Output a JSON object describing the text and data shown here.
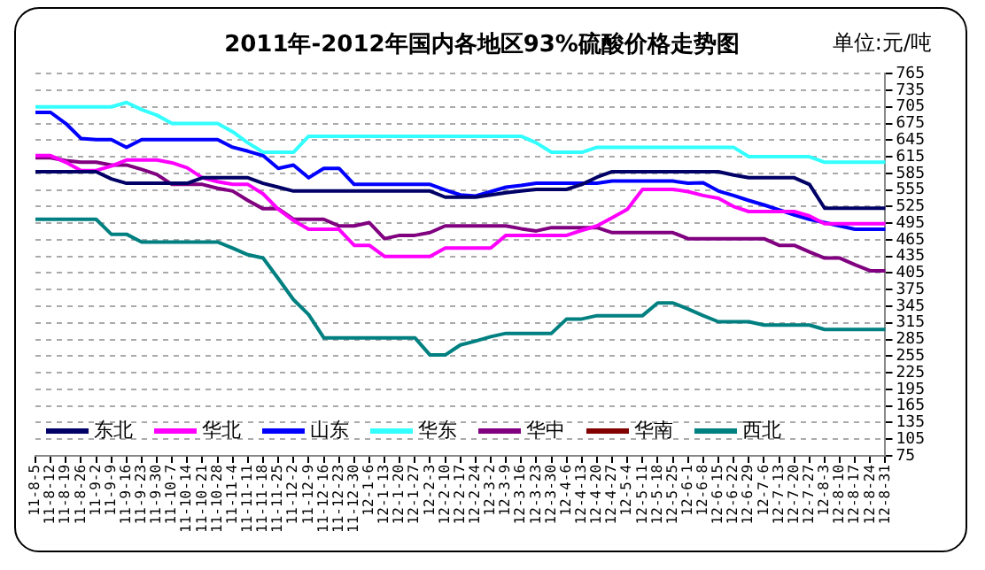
{
  "chart_data": {
    "type": "line",
    "title": "2011年-2012年国内各地区93%硫酸价格走势图",
    "annotations": [
      "单位:元/吨"
    ],
    "categories": [
      "11-8-5",
      "11-8-12",
      "11-8-19",
      "11-8-26",
      "11-9-2",
      "11-9-9",
      "11-9-16",
      "11-9-23",
      "11-9-30",
      "11-10-7",
      "11-10-14",
      "11-10-21",
      "11-10-28",
      "11-11-4",
      "11-11-11",
      "11-11-18",
      "11-11-25",
      "11-12-2",
      "11-12-9",
      "11-12-16",
      "11-12-23",
      "11-12-30",
      "12-1-6",
      "12-1-13",
      "12-1-20",
      "12-1-27",
      "12-2-3",
      "12-2-10",
      "12-2-17",
      "12-2-24",
      "12-3-2",
      "12-3-9",
      "12-3-16",
      "12-3-23",
      "12-3-30",
      "12-4-6",
      "12-4-13",
      "12-4-20",
      "12-4-27",
      "12-5-4",
      "12-5-11",
      "12-5-18",
      "12-5-25",
      "12-6-1",
      "12-6-8",
      "12-6-15",
      "12-6-22",
      "12-6-29",
      "12-7-6",
      "12-7-13",
      "12-7-20",
      "12-7-27",
      "12-8-3",
      "12-8-10",
      "12-8-17",
      "12-8-24",
      "12-8-31"
    ],
    "series": [
      {
        "name": "东北",
        "color": "#000066",
        "values": [
          588,
          588,
          588,
          588,
          588,
          575,
          567,
          567,
          567,
          567,
          567,
          577,
          577,
          577,
          577,
          567,
          560,
          553,
          553,
          553,
          553,
          553,
          553,
          553,
          553,
          553,
          553,
          542,
          542,
          542,
          546,
          550,
          553,
          556,
          556,
          556,
          565,
          578,
          588,
          588,
          588,
          588,
          588,
          588,
          588,
          588,
          582,
          577,
          577,
          577,
          577,
          565,
          522,
          522,
          522,
          522,
          522
        ]
      },
      {
        "name": "华北",
        "color": "#ff00ff",
        "values": [
          617,
          617,
          605,
          590,
          590,
          598,
          609,
          609,
          609,
          604,
          595,
          577,
          570,
          565,
          565,
          548,
          520,
          500,
          484,
          484,
          484,
          455,
          455,
          435,
          435,
          435,
          435,
          450,
          450,
          450,
          450,
          473,
          473,
          473,
          473,
          473,
          482,
          490,
          505,
          520,
          556,
          556,
          556,
          552,
          545,
          540,
          525,
          516,
          516,
          516,
          516,
          508,
          494,
          494,
          494,
          494,
          494
        ]
      },
      {
        "name": "山东",
        "color": "#0000ff",
        "values": [
          695,
          695,
          675,
          648,
          646,
          646,
          632,
          646,
          646,
          646,
          646,
          646,
          646,
          632,
          625,
          617,
          594,
          600,
          577,
          594,
          594,
          565,
          565,
          565,
          565,
          565,
          565,
          555,
          546,
          544,
          552,
          560,
          563,
          567,
          567,
          567,
          567,
          567,
          571,
          571,
          571,
          571,
          571,
          567,
          568,
          553,
          545,
          536,
          528,
          519,
          510,
          502,
          496,
          490,
          484,
          484,
          484
        ]
      },
      {
        "name": "华东",
        "color": "#33ffff",
        "values": [
          705,
          705,
          705,
          705,
          705,
          705,
          713,
          700,
          690,
          675,
          675,
          675,
          675,
          660,
          640,
          623,
          623,
          623,
          652,
          652,
          652,
          652,
          652,
          652,
          652,
          652,
          652,
          652,
          652,
          652,
          652,
          652,
          652,
          640,
          623,
          623,
          623,
          632,
          632,
          632,
          632,
          632,
          632,
          632,
          632,
          632,
          632,
          615,
          615,
          615,
          615,
          615,
          605,
          605,
          605,
          605,
          605
        ]
      },
      {
        "name": "华中",
        "color": "#800080",
        "values": [
          613,
          613,
          608,
          605,
          605,
          600,
          600,
          592,
          583,
          565,
          565,
          565,
          558,
          553,
          536,
          521,
          521,
          502,
          502,
          502,
          490,
          490,
          496,
          467,
          473,
          473,
          478,
          490,
          490,
          490,
          490,
          490,
          485,
          481,
          487,
          487,
          487,
          487,
          478,
          478,
          478,
          478,
          478,
          467,
          467,
          467,
          467,
          467,
          467,
          455,
          455,
          443,
          432,
          432,
          420,
          409,
          409
        ]
      },
      {
        "name": "华南",
        "color": "#800000",
        "values": [
          null,
          null,
          null,
          null,
          null,
          null,
          null,
          null,
          null,
          null,
          null,
          null,
          null,
          null,
          null,
          null,
          null,
          null,
          null,
          null,
          null,
          null,
          null,
          null,
          null,
          null,
          null,
          null,
          null,
          null,
          null,
          null,
          null,
          null,
          null,
          null,
          null,
          null,
          null,
          null,
          null,
          null,
          null,
          null,
          null,
          null,
          null,
          null,
          null,
          null,
          null,
          null,
          null,
          null,
          null,
          null,
          null
        ]
      },
      {
        "name": "西北",
        "color": "#008080",
        "values": [
          502,
          502,
          502,
          502,
          502,
          475,
          475,
          461,
          461,
          461,
          461,
          461,
          461,
          450,
          438,
          432,
          395,
          357,
          330,
          288,
          288,
          288,
          288,
          288,
          288,
          288,
          257,
          257,
          275,
          282,
          290,
          296,
          296,
          296,
          296,
          322,
          322,
          328,
          328,
          328,
          328,
          351,
          351,
          340,
          328,
          317,
          317,
          317,
          311,
          311,
          311,
          311,
          303,
          303,
          303,
          303,
          303
        ]
      }
    ],
    "ylim": [
      75,
      765
    ],
    "yticks": [
      75,
      105,
      135,
      165,
      195,
      225,
      255,
      285,
      315,
      345,
      375,
      405,
      435,
      465,
      495,
      525,
      555,
      585,
      615,
      645,
      675,
      705,
      735,
      765
    ],
    "grid": "y",
    "legend": "bottom",
    "marker": "none",
    "line_style": "solid"
  }
}
